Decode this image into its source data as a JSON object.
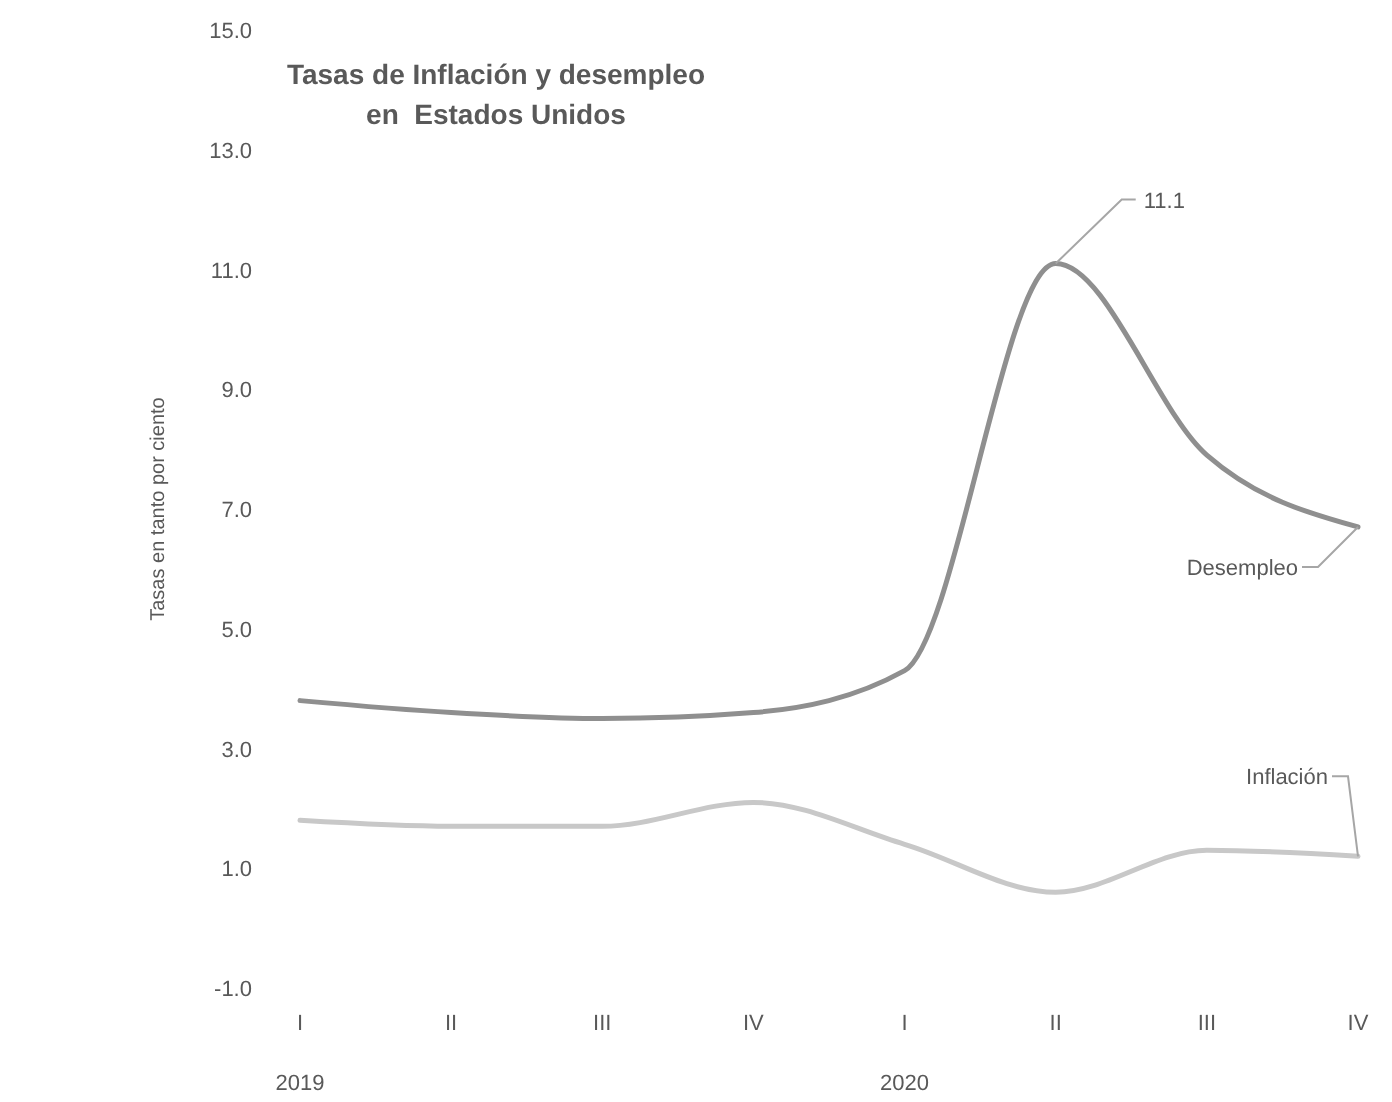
{
  "chart_data": {
    "type": "line",
    "title": "Tasas de Inflación y desempleo\nen  Estados Unidos",
    "ylabel": "Tasas en tanto por ciento",
    "categories": [
      "I",
      "II",
      "III",
      "IV",
      "I",
      "II",
      "III",
      "IV"
    ],
    "series": [
      {
        "name": "Desempleo",
        "color": "#8f8f8f",
        "values": [
          3.8,
          3.6,
          3.5,
          3.6,
          4.3,
          11.1,
          7.9,
          6.7
        ],
        "value_labels": [
          null,
          null,
          null,
          null,
          null,
          "11.1",
          null,
          null
        ]
      },
      {
        "name": "Inflación",
        "color": "#c8c8c8",
        "values": [
          1.8,
          1.7,
          1.7,
          2.1,
          1.4,
          0.6,
          1.3,
          1.2
        ]
      }
    ],
    "ylim": [
      -1,
      15
    ],
    "yticks": [
      {
        "value": -1,
        "label": "-1.0"
      },
      {
        "value": 1,
        "label": "1.0"
      },
      {
        "value": 3,
        "label": "3.0"
      },
      {
        "value": 5,
        "label": "5.0"
      },
      {
        "value": 7,
        "label": "7.0"
      },
      {
        "value": 9,
        "label": "9.0"
      },
      {
        "value": 11,
        "label": "11.0"
      },
      {
        "value": 13,
        "label": "13.0"
      },
      {
        "value": 15,
        "label": "15.0"
      }
    ],
    "grid": false,
    "legend": false,
    "annotations": [
      "2019",
      "2020"
    ]
  }
}
